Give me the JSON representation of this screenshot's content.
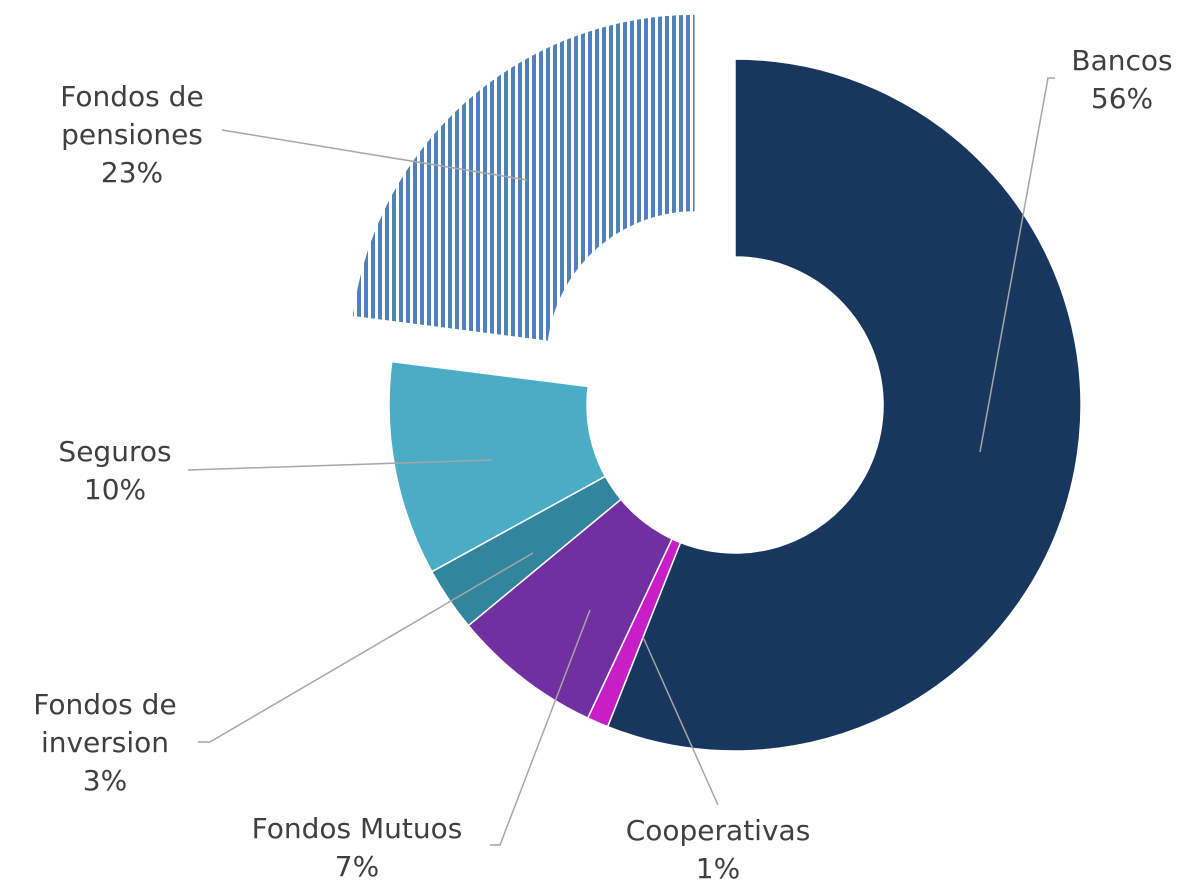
{
  "chart_data": {
    "type": "donut",
    "categories": [
      "Bancos",
      "Cooperativas",
      "Fondos Mutuos",
      "Fondos de inversion",
      "Seguros",
      "Fondos de pensiones"
    ],
    "values": [
      56,
      1,
      7,
      3,
      10,
      23
    ],
    "value_labels": [
      "56%",
      "1%",
      "7%",
      "3%",
      "10%",
      "23%"
    ],
    "colors": [
      "#17375e",
      "#c81ec8",
      "#7030a0",
      "#31859c",
      "#4bacc6",
      "#4f81bd"
    ],
    "exploded": [
      "Fondos de pensiones"
    ],
    "pattern": {
      "Fondos de pensiones": "vertical-stripes"
    }
  }
}
